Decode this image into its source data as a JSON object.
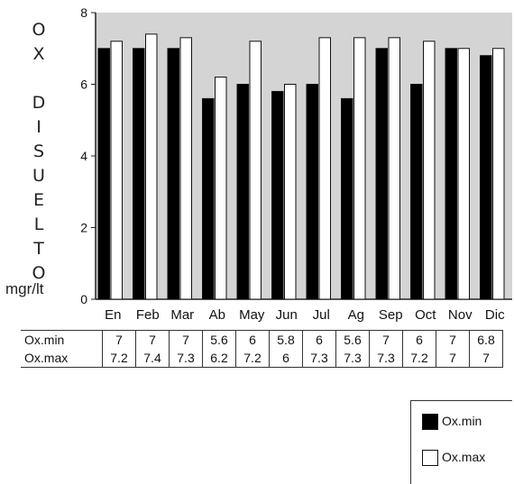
{
  "chart_data": {
    "type": "bar",
    "ylabel_letters": [
      "O",
      "X",
      "",
      "D",
      "I",
      "S",
      "U",
      "E",
      "L",
      "T",
      "O"
    ],
    "ylabel_unit": "mgr/lt",
    "ylim": [
      0,
      8
    ],
    "yticks": [
      "0",
      "2",
      "4",
      "6",
      "8"
    ],
    "categories": [
      "En",
      "Feb",
      "Mar",
      "Ab",
      "May",
      "Jun",
      "Jul",
      "Ag",
      "Sep",
      "Oct",
      "Nov",
      "Dic"
    ],
    "series": [
      {
        "name": "Ox.min",
        "color": "#000000",
        "values": [
          7,
          7,
          7,
          5.6,
          6,
          5.8,
          6,
          5.6,
          7,
          6,
          7,
          6.8
        ]
      },
      {
        "name": "Ox.max",
        "color": "#ffffff",
        "values": [
          7.2,
          7.4,
          7.3,
          6.2,
          7.2,
          6,
          7.3,
          7.3,
          7.3,
          7.2,
          7,
          7
        ]
      }
    ],
    "table": {
      "rows": [
        {
          "label": "Ox.min",
          "cells": [
            "7",
            "7",
            "7",
            "5.6",
            "6",
            "5.8",
            "6",
            "5.6",
            "7",
            "6",
            "7",
            "6.8"
          ]
        },
        {
          "label": "Ox.max",
          "cells": [
            "7.2",
            "7.4",
            "7.3",
            "6.2",
            "7.2",
            "6",
            "7.3",
            "7.3",
            "7.3",
            "7.2",
            "7",
            "7"
          ]
        }
      ]
    },
    "legend": {
      "position": "bottom-right",
      "items": [
        {
          "label": "Ox.min",
          "color": "#000000"
        },
        {
          "label": "Ox.max",
          "color": "#ffffff"
        }
      ]
    },
    "plot_background": "#d4d4d4",
    "grid": false
  }
}
